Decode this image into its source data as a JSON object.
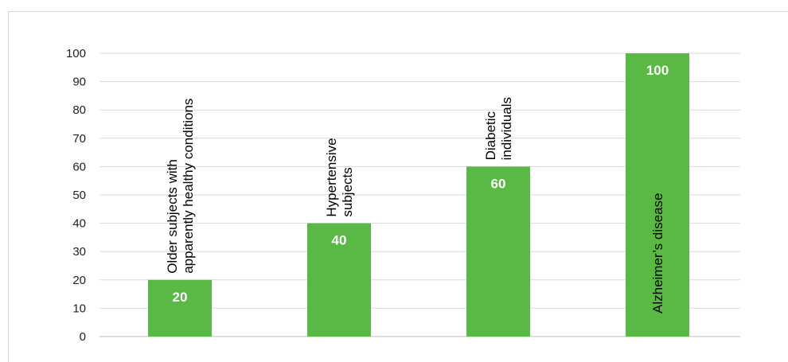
{
  "chart_data": {
    "type": "bar",
    "title": "",
    "xlabel": "",
    "ylabel": "",
    "ylim": [
      0,
      100
    ],
    "yticks": [
      0,
      10,
      20,
      30,
      40,
      50,
      60,
      70,
      80,
      90,
      100
    ],
    "grid": true,
    "bar_color": "#5ab845",
    "categories": [
      "Older subjects with apparently healthy conditions",
      "Hypertensive subjects",
      "Diabetic individuals",
      "Alzheimer’s disease"
    ],
    "category_label_lines": [
      [
        "Older subjects with",
        "apparently healthy conditions"
      ],
      [
        "Hypertensive",
        "subjects"
      ],
      [
        "Diabetic",
        "individuals"
      ],
      [
        "Alzheimer’s disease"
      ]
    ],
    "values": [
      20,
      40,
      60,
      100
    ],
    "data_labels": [
      "20",
      "40",
      "60",
      "100"
    ]
  }
}
